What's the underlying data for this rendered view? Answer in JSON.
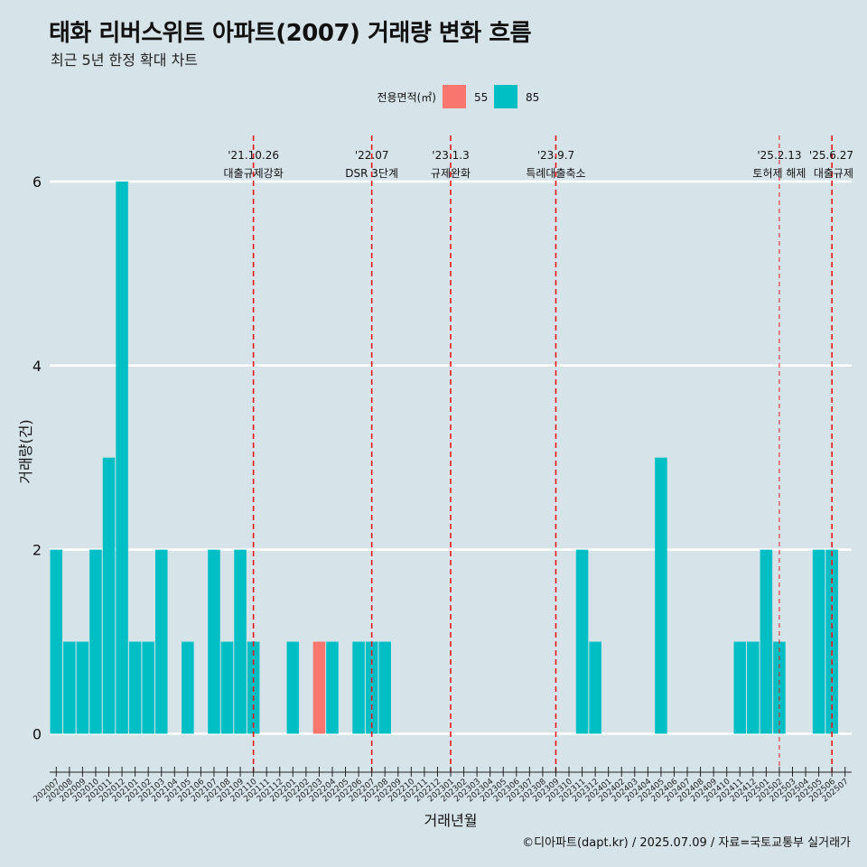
{
  "header": {
    "title": "태화 리버스위트 아파트(2007) 거래량 변화 흐름",
    "subtitle": "최근 5년 한정 확대 차트"
  },
  "caption": "©디아파트(dapt.kr) / 2025.07.09 / 자료=국토교통부 실거래가",
  "colors": {
    "background": "#d6e4ea",
    "series_55": "#f8766d",
    "series_85": "#00bfc4",
    "event_line": "#e41a1c",
    "grid": "#ffffff"
  },
  "chart_data": {
    "type": "bar",
    "stacked": true,
    "xlabel": "거래년월",
    "ylabel": "거래량(건)",
    "ylim": [
      -0.3,
      6.5
    ],
    "yticks": [
      0,
      2,
      4,
      6
    ],
    "grid": true,
    "legend": {
      "title": "전용면적(㎡)",
      "position": "top"
    },
    "categories": [
      "202007",
      "202008",
      "202009",
      "202010",
      "202011",
      "202012",
      "202101",
      "202102",
      "202103",
      "202104",
      "202105",
      "202106",
      "202107",
      "202108",
      "202109",
      "202110",
      "202111",
      "202112",
      "202201",
      "202202",
      "202203",
      "202204",
      "202205",
      "202206",
      "202207",
      "202208",
      "202209",
      "202210",
      "202211",
      "202212",
      "202301",
      "202302",
      "202303",
      "202304",
      "202305",
      "202306",
      "202307",
      "202308",
      "202309",
      "202310",
      "202311",
      "202312",
      "202401",
      "202402",
      "202403",
      "202404",
      "202405",
      "202406",
      "202407",
      "202408",
      "202409",
      "202410",
      "202411",
      "202412",
      "202501",
      "202502",
      "202503",
      "202504",
      "202505",
      "202506",
      "202507"
    ],
    "series": [
      {
        "name": "55",
        "values": [
          0,
          0,
          0,
          0,
          0,
          0,
          0,
          0,
          0,
          0,
          0,
          0,
          0,
          0,
          0,
          0,
          0,
          0,
          0,
          0,
          1,
          0,
          0,
          0,
          0,
          0,
          0,
          0,
          0,
          0,
          0,
          0,
          0,
          0,
          0,
          0,
          0,
          0,
          0,
          0,
          0,
          0,
          0,
          0,
          0,
          0,
          0,
          0,
          0,
          0,
          0,
          0,
          0,
          0,
          0,
          0,
          0,
          0,
          0,
          0,
          0
        ]
      },
      {
        "name": "85",
        "values": [
          2,
          1,
          1,
          2,
          3,
          6,
          1,
          1,
          2,
          0,
          1,
          0,
          2,
          1,
          2,
          1,
          0,
          0,
          1,
          0,
          0,
          1,
          0,
          1,
          1,
          1,
          0,
          0,
          0,
          0,
          0,
          0,
          0,
          0,
          0,
          0,
          0,
          0,
          0,
          0,
          2,
          1,
          0,
          0,
          0,
          0,
          3,
          0,
          0,
          0,
          0,
          0,
          1,
          1,
          2,
          1,
          0,
          0,
          2,
          2,
          0
        ]
      }
    ],
    "events": [
      {
        "date": "'21.10.26",
        "label": "대출규제강화",
        "x": "202110",
        "style": "dashed"
      },
      {
        "date": "'22.07",
        "label": "DSR 3단계",
        "x": "202207",
        "style": "dashed"
      },
      {
        "date": "'23.1.3",
        "label": "규제완화",
        "x": "202301",
        "style": "dashed"
      },
      {
        "date": "'23.9.7",
        "label": "특례대출축소",
        "x": "202309",
        "style": "dashed"
      },
      {
        "date": "'25.2.13",
        "label": "토허제 해제",
        "x": "202502",
        "style": "dashed-thin"
      },
      {
        "date": "'25.6.27",
        "label": "대출규제",
        "x": "202506",
        "style": "dashed"
      }
    ]
  }
}
